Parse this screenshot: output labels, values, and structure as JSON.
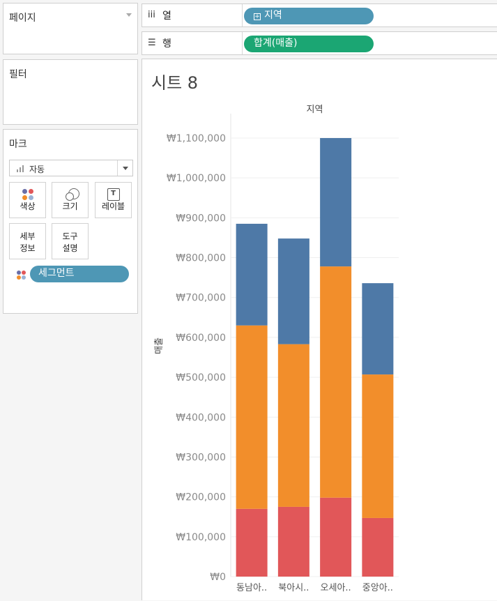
{
  "pages": {
    "title": "페이지"
  },
  "filters": {
    "title": "필터"
  },
  "marks": {
    "title": "마크",
    "mark_type": "자동",
    "buttons": [
      {
        "key": "color",
        "label": "색상",
        "icon": "color-dots-icon"
      },
      {
        "key": "size",
        "label": "크기",
        "icon": "size-circles-icon"
      },
      {
        "key": "label",
        "label": "레이블",
        "icon": "text-label-icon"
      },
      {
        "key": "detail",
        "label": "세부\n정보",
        "icon": ""
      },
      {
        "key": "tooltip",
        "label": "도구\n설명",
        "icon": ""
      }
    ],
    "color_field": "세그먼트"
  },
  "shelves": {
    "columns": {
      "icon": "iii",
      "name": "열",
      "pill": "지역"
    },
    "rows": {
      "icon": "☰",
      "name": "행",
      "pill": "합계(매출)"
    }
  },
  "sheet": {
    "title": "시트 8"
  },
  "colors": {
    "accent_blue": "#4e97b5",
    "accent_green": "#1ba673",
    "segments": [
      "#4e79a7",
      "#f28e2b",
      "#e15759"
    ]
  },
  "chart_data": {
    "type": "bar",
    "stacked": true,
    "title": "지역",
    "ylabel": "매출",
    "categories": [
      "동남아..",
      "북아시..",
      "오세아..",
      "중앙아.."
    ],
    "series": [
      {
        "color": "#e15759",
        "values": [
          170000,
          175000,
          198000,
          147000
        ]
      },
      {
        "color": "#f28e2b",
        "values": [
          460000,
          408000,
          580000,
          360000
        ]
      },
      {
        "color": "#4e79a7",
        "values": [
          255000,
          265000,
          322000,
          229000
        ]
      }
    ],
    "totals": [
      885000,
      848000,
      1100000,
      736000
    ],
    "ylim": [
      0,
      1100000
    ],
    "yticks": [
      0,
      100000,
      200000,
      300000,
      400000,
      500000,
      600000,
      700000,
      800000,
      900000,
      1000000,
      1100000
    ],
    "ytick_labels": [
      "₩0",
      "₩100,000",
      "₩200,000",
      "₩300,000",
      "₩400,000",
      "₩500,000",
      "₩600,000",
      "₩700,000",
      "₩800,000",
      "₩900,000",
      "₩1,000,000",
      "₩1,100,000"
    ],
    "grid": true,
    "legend": "none"
  }
}
